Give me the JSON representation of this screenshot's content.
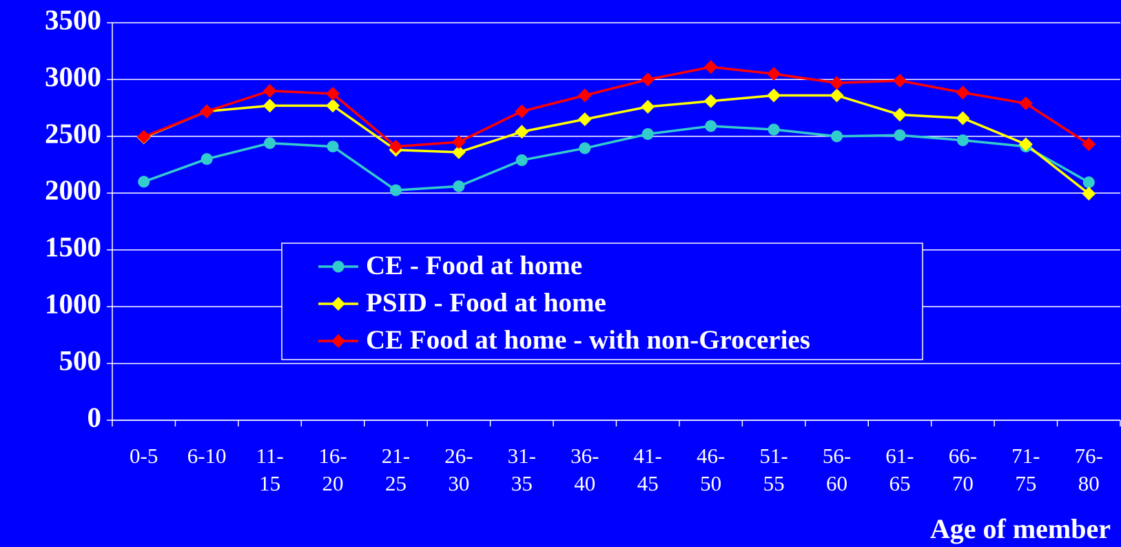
{
  "chart_data": {
    "type": "line",
    "x_label": "Age of member",
    "categories": [
      "0-5",
      "6-10",
      "11-15",
      "16-20",
      "21-25",
      "26-30",
      "31-35",
      "36-40",
      "41-45",
      "46-50",
      "51-55",
      "56-60",
      "61-65",
      "66-70",
      "71-75",
      "76-80"
    ],
    "series": [
      {
        "name": "CE - Food at home",
        "color": "#33cccc",
        "marker": "circle",
        "values": [
          2100,
          2300,
          2440,
          2410,
          2025,
          2060,
          2290,
          2395,
          2520,
          2590,
          2560,
          2500,
          2510,
          2465,
          2410,
          2095
        ]
      },
      {
        "name": "PSID - Food at home",
        "color": "#ffff00",
        "marker": "diamond",
        "values": [
          2490,
          2720,
          2770,
          2770,
          2380,
          2360,
          2540,
          2650,
          2760,
          2810,
          2860,
          2860,
          2690,
          2660,
          2430,
          1995
        ]
      },
      {
        "name": "CE Food at home - with non-Groceries",
        "color": "#ff0000",
        "marker": "diamond",
        "values": [
          2495,
          2720,
          2900,
          2875,
          2410,
          2450,
          2720,
          2860,
          3000,
          3110,
          3050,
          2970,
          2990,
          2885,
          2790,
          2430
        ]
      }
    ],
    "ylim": [
      0,
      3500
    ],
    "yticks": [
      0,
      500,
      1000,
      1500,
      2000,
      2500,
      3000,
      3500
    ],
    "grid": true
  }
}
